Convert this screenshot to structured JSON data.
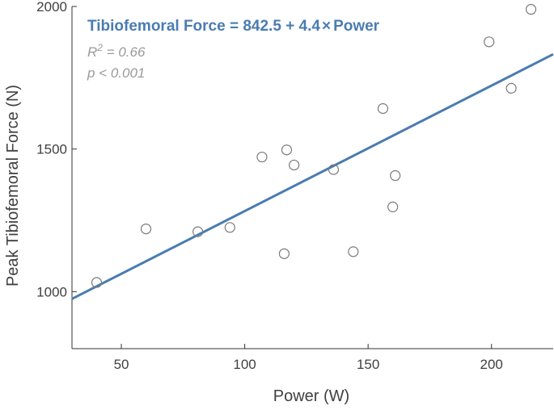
{
  "chart_data": {
    "type": "scatter",
    "title": "",
    "xlabel": "Power (W)",
    "ylabel": "Peak Tibiofemoral Force (N)",
    "xlim": [
      30,
      225
    ],
    "ylim": [
      800,
      2000
    ],
    "xticks": [
      50,
      100,
      150,
      200
    ],
    "yticks": [
      1000,
      1500,
      2000
    ],
    "grid": false,
    "points": [
      {
        "x": 40,
        "y": 1032
      },
      {
        "x": 60,
        "y": 1220
      },
      {
        "x": 81,
        "y": 1210
      },
      {
        "x": 94,
        "y": 1225
      },
      {
        "x": 107,
        "y": 1472
      },
      {
        "x": 116,
        "y": 1133
      },
      {
        "x": 117,
        "y": 1497
      },
      {
        "x": 120,
        "y": 1444
      },
      {
        "x": 136,
        "y": 1428
      },
      {
        "x": 144,
        "y": 1140
      },
      {
        "x": 156,
        "y": 1642
      },
      {
        "x": 160,
        "y": 1297
      },
      {
        "x": 161,
        "y": 1407
      },
      {
        "x": 199,
        "y": 1876
      },
      {
        "x": 208,
        "y": 1713
      },
      {
        "x": 216,
        "y": 1990
      }
    ],
    "regression": {
      "intercept": 842.5,
      "slope": 4.4
    },
    "annotations": {
      "equation_prefix": "Tibiofemoral Force = 842.5 + 4.4",
      "equation_times": "×",
      "equation_suffix": "Power",
      "r2_label": "R",
      "r2_sup": "2",
      "r2_value": " = 0.66",
      "p_value": "p < 0.001"
    },
    "colors": {
      "line": "#4a7cb0",
      "marker_stroke": "#7a7a7a",
      "axis": "#333333"
    }
  }
}
